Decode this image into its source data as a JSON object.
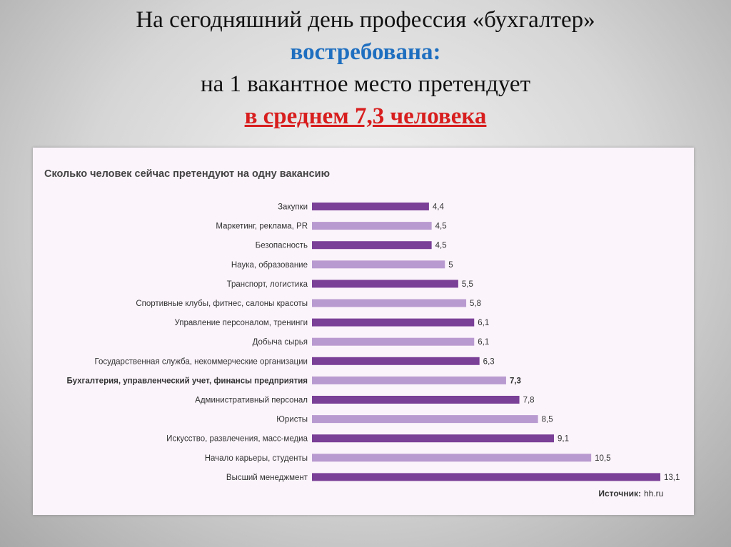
{
  "heading": {
    "line1": "На сегодняшний день профессия «бухгалтер»",
    "line2": "востребована:",
    "line3": "на 1 вакантное место претендует",
    "line4": "в среднем 7,3 человека"
  },
  "chart_data": {
    "type": "bar",
    "orientation": "horizontal",
    "title": "Сколько человек сейчас претендуют на одну вакансию",
    "source_label": "Источник:",
    "source_value": "hh.ru",
    "categories": [
      "Закупки",
      "Маркетинг, реклама, PR",
      "Безопасность",
      "Наука, образование",
      "Транспорт, логистика",
      "Спортивные клубы, фитнес, салоны красоты",
      "Управление персоналом, тренинги",
      "Добыча сырья",
      "Государственная служба, некоммерческие организации",
      "Бухгалтерия, управленческий учет, финансы предприятия",
      "Административный персонал",
      "Юристы",
      "Искусство, развлечения, масс-медиа",
      "Начало карьеры, студенты",
      "Высший менеджмент"
    ],
    "values": [
      4.4,
      4.5,
      4.5,
      5,
      5.5,
      5.8,
      6.1,
      6.1,
      6.3,
      7.3,
      7.8,
      8.5,
      9.1,
      10.5,
      13.1
    ],
    "value_labels": [
      "4,4",
      "4,5",
      "4,5",
      "5",
      "5,5",
      "5,8",
      "6,1",
      "6,1",
      "6,3",
      "7,3",
      "7,8",
      "8,5",
      "9,1",
      "10,5",
      "13,1"
    ],
    "highlighted_category": "Бухгалтерия, управленческий учет, финансы предприятия",
    "colors": {
      "dark": "#7a3f97",
      "light": "#b99ad0",
      "text": "#333333",
      "panel": "#fbf4fb"
    },
    "xlim": [
      0,
      13.1
    ],
    "grid": false,
    "legend": "none"
  }
}
